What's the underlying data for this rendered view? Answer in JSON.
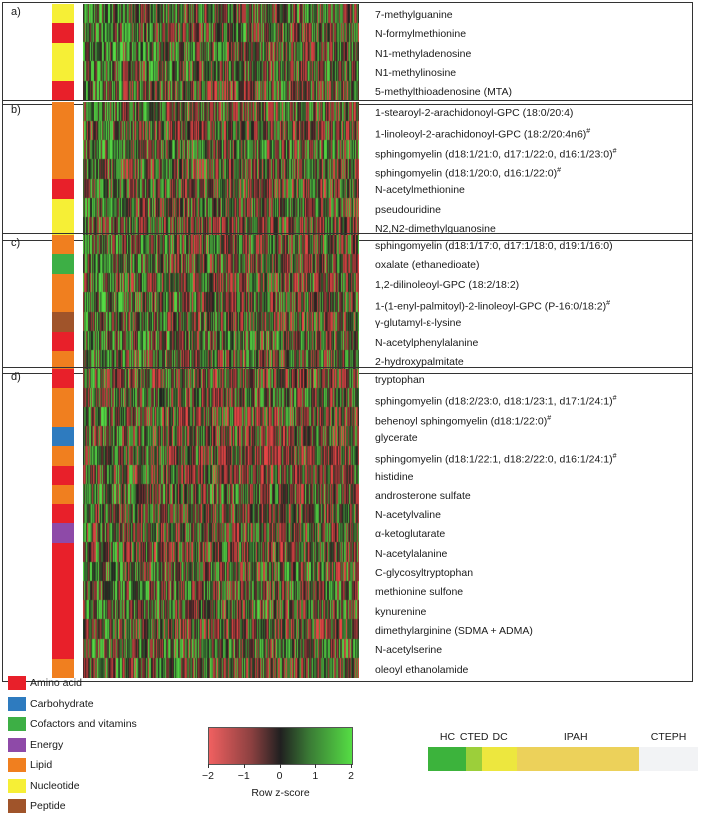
{
  "class_colors": {
    "Amino acid": "#e8202a",
    "Carbohydrate": "#2e7bbf",
    "Cofactors and vitamins": "#3daf45",
    "Energy": "#8e4aa8",
    "Lipid": "#f07f1f",
    "Nucleotide": "#f6ef36",
    "Peptide": "#a0542a"
  },
  "legend": {
    "items": [
      "Amino acid",
      "Carbohydrate",
      "Cofactors and vitamins",
      "Energy",
      "Lipid",
      "Nucleotide",
      "Peptide"
    ]
  },
  "panels": [
    {
      "letter": "a)",
      "rows": [
        {
          "label": "7-methylguanine",
          "class": "Nucleotide",
          "hash": false
        },
        {
          "label": "N-formylmethionine",
          "class": "Amino acid",
          "hash": false
        },
        {
          "label": "N1-methyladenosine",
          "class": "Nucleotide",
          "hash": false
        },
        {
          "label": "N1-methylinosine",
          "class": "Nucleotide",
          "hash": false
        },
        {
          "label": "5-methylthioadenosine (MTA)",
          "class": "Amino acid",
          "hash": false
        }
      ]
    },
    {
      "letter": "b)",
      "rows": [
        {
          "label": "1-stearoyl-2-arachidonoyl-GPC (18:0/20:4)",
          "class": "Lipid",
          "hash": false
        },
        {
          "label": "1-linoleoyl-2-arachidonoyl-GPC (18:2/20:4n6)",
          "class": "Lipid",
          "hash": true
        },
        {
          "label": "sphingomyelin (d18:1/21:0, d17:1/22:0, d16:1/23:0)",
          "class": "Lipid",
          "hash": true
        },
        {
          "label": "sphingomyelin (d18:1/20:0, d16:1/22:0)",
          "class": "Lipid",
          "hash": true
        },
        {
          "label": "N-acetylmethionine",
          "class": "Amino acid",
          "hash": false
        },
        {
          "label": "pseudouridine",
          "class": "Nucleotide",
          "hash": false
        },
        {
          "label": "N2,N2-dimethylguanosine",
          "class": "Nucleotide",
          "hash": false
        }
      ]
    },
    {
      "letter": "c)",
      "rows": [
        {
          "label": "sphingomyelin (d18:1/17:0, d17:1/18:0, d19:1/16:0)",
          "class": "Lipid",
          "hash": false
        },
        {
          "label": "oxalate (ethanedioate)",
          "class": "Cofactors and vitamins",
          "hash": false
        },
        {
          "label": "1,2-dilinoleoyl-GPC (18:2/18:2)",
          "class": "Lipid",
          "hash": false
        },
        {
          "label": "1-(1-enyl-palmitoyl)-2-linoleoyl-GPC (P-16:0/18:2)",
          "class": "Lipid",
          "hash": true
        },
        {
          "label": "γ-glutamyl-ε-lysine",
          "class": "Peptide",
          "hash": false
        },
        {
          "label": "N-acetylphenylalanine",
          "class": "Amino acid",
          "hash": false
        },
        {
          "label": "2-hydroxypalmitate",
          "class": "Lipid",
          "hash": false
        }
      ]
    },
    {
      "letter": "d)",
      "rows": [
        {
          "label": "tryptophan",
          "class": "Amino acid",
          "hash": false
        },
        {
          "label": "sphingomyelin (d18:2/23:0, d18:1/23:1, d17:1/24:1)",
          "class": "Lipid",
          "hash": true
        },
        {
          "label": "behenoyl sphingomyelin (d18:1/22:0)",
          "class": "Lipid",
          "hash": true
        },
        {
          "label": "glycerate",
          "class": "Carbohydrate",
          "hash": false
        },
        {
          "label": "sphingomyelin (d18:1/22:1, d18:2/22:0, d16:1/24:1)",
          "class": "Lipid",
          "hash": true
        },
        {
          "label": "histidine",
          "class": "Amino acid",
          "hash": false
        },
        {
          "label": "androsterone sulfate",
          "class": "Lipid",
          "hash": false
        },
        {
          "label": "N-acetylvaline",
          "class": "Amino acid",
          "hash": false
        },
        {
          "label": "α-ketoglutarate",
          "class": "Energy",
          "hash": false
        },
        {
          "label": "N-acetylalanine",
          "class": "Amino acid",
          "hash": false
        },
        {
          "label": "C-glycosyltryptophan",
          "class": "Amino acid",
          "hash": false
        },
        {
          "label": "methionine sulfone",
          "class": "Amino acid",
          "hash": false
        },
        {
          "label": "kynurenine",
          "class": "Amino acid",
          "hash": false
        },
        {
          "label": "dimethylarginine (SDMA + ADMA)",
          "class": "Amino acid",
          "hash": false
        },
        {
          "label": "N-acetylserine",
          "class": "Amino acid",
          "hash": false
        },
        {
          "label": "oleoyl ethanolamide",
          "class": "Lipid",
          "hash": false
        }
      ]
    }
  ],
  "chart_data": {
    "type": "heatmap",
    "title": "",
    "colorbar": {
      "label": "Row z-score",
      "ticks": [
        -2,
        -1,
        0,
        1,
        2
      ],
      "range": [
        -2,
        2
      ],
      "low_color": "#f06060",
      "mid_color": "#202020",
      "high_color": "#55dd44"
    },
    "group_bar": {
      "groups": [
        {
          "name": "HC",
          "color": "#3cb33c",
          "fraction": 0.14
        },
        {
          "name": "CTED",
          "color": "#9ccf3a",
          "fraction": 0.06
        },
        {
          "name": "DC",
          "color": "#ede73e",
          "fraction": 0.13
        },
        {
          "name": "IPAH",
          "color": "#ecd15a",
          "fraction": 0.45
        },
        {
          "name": "CTEPH",
          "color": "#f2f3f5",
          "fraction": 0.22
        }
      ]
    }
  }
}
